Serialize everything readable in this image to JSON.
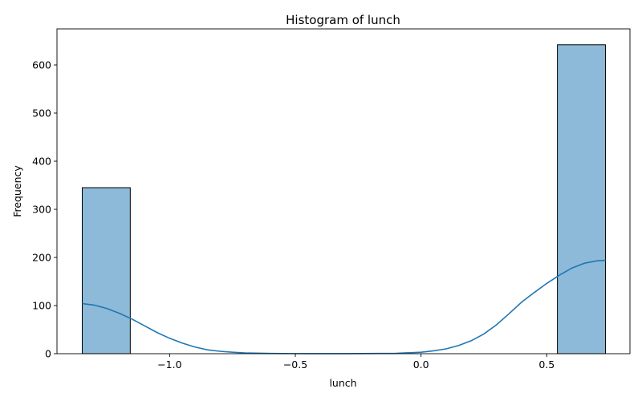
{
  "chart_data": {
    "type": "bar",
    "title": "Histogram of lunch",
    "xlabel": "lunch",
    "ylabel": "Frequency",
    "xlim": [
      -1.448,
      0.831
    ],
    "ylim": [
      0,
      675
    ],
    "xticks": [
      {
        "value": -1.0,
        "label": "−1.0"
      },
      {
        "value": -0.5,
        "label": "−0.5"
      },
      {
        "value": 0.0,
        "label": "0.0"
      },
      {
        "value": 0.5,
        "label": "0.5"
      }
    ],
    "yticks": [
      {
        "value": 0,
        "label": "0"
      },
      {
        "value": 100,
        "label": "100"
      },
      {
        "value": 200,
        "label": "200"
      },
      {
        "value": 300,
        "label": "300"
      },
      {
        "value": 400,
        "label": "400"
      },
      {
        "value": 500,
        "label": "500"
      },
      {
        "value": 600,
        "label": "600"
      }
    ],
    "bins": [
      {
        "x0": -1.3475,
        "x1": -1.1565,
        "count": 345
      },
      {
        "x0": 0.5425,
        "x1": 0.7335,
        "count": 642
      }
    ],
    "kde": [
      [
        -1.3475,
        104
      ],
      [
        -1.3,
        101
      ],
      [
        -1.25,
        94
      ],
      [
        -1.2,
        84
      ],
      [
        -1.15,
        72
      ],
      [
        -1.1,
        58
      ],
      [
        -1.05,
        44
      ],
      [
        -1.0,
        32
      ],
      [
        -0.95,
        22
      ],
      [
        -0.9,
        14
      ],
      [
        -0.85,
        8
      ],
      [
        -0.8,
        5
      ],
      [
        -0.75,
        3
      ],
      [
        -0.7,
        1.5
      ],
      [
        -0.6,
        0.5
      ],
      [
        -0.5,
        0.2
      ],
      [
        -0.3,
        0.1
      ],
      [
        -0.1,
        0.8
      ],
      [
        0.0,
        3
      ],
      [
        0.05,
        6
      ],
      [
        0.1,
        10
      ],
      [
        0.15,
        17
      ],
      [
        0.2,
        27
      ],
      [
        0.25,
        41
      ],
      [
        0.3,
        60
      ],
      [
        0.35,
        83
      ],
      [
        0.4,
        107
      ],
      [
        0.45,
        127
      ],
      [
        0.5,
        146
      ],
      [
        0.55,
        163
      ],
      [
        0.6,
        178
      ],
      [
        0.65,
        188
      ],
      [
        0.7,
        193
      ],
      [
        0.7335,
        194
      ]
    ],
    "grid": false,
    "colors": {
      "bar_fill": "#8ebad9",
      "bar_edge": "#000000",
      "kde_line": "#1f77b4"
    }
  }
}
